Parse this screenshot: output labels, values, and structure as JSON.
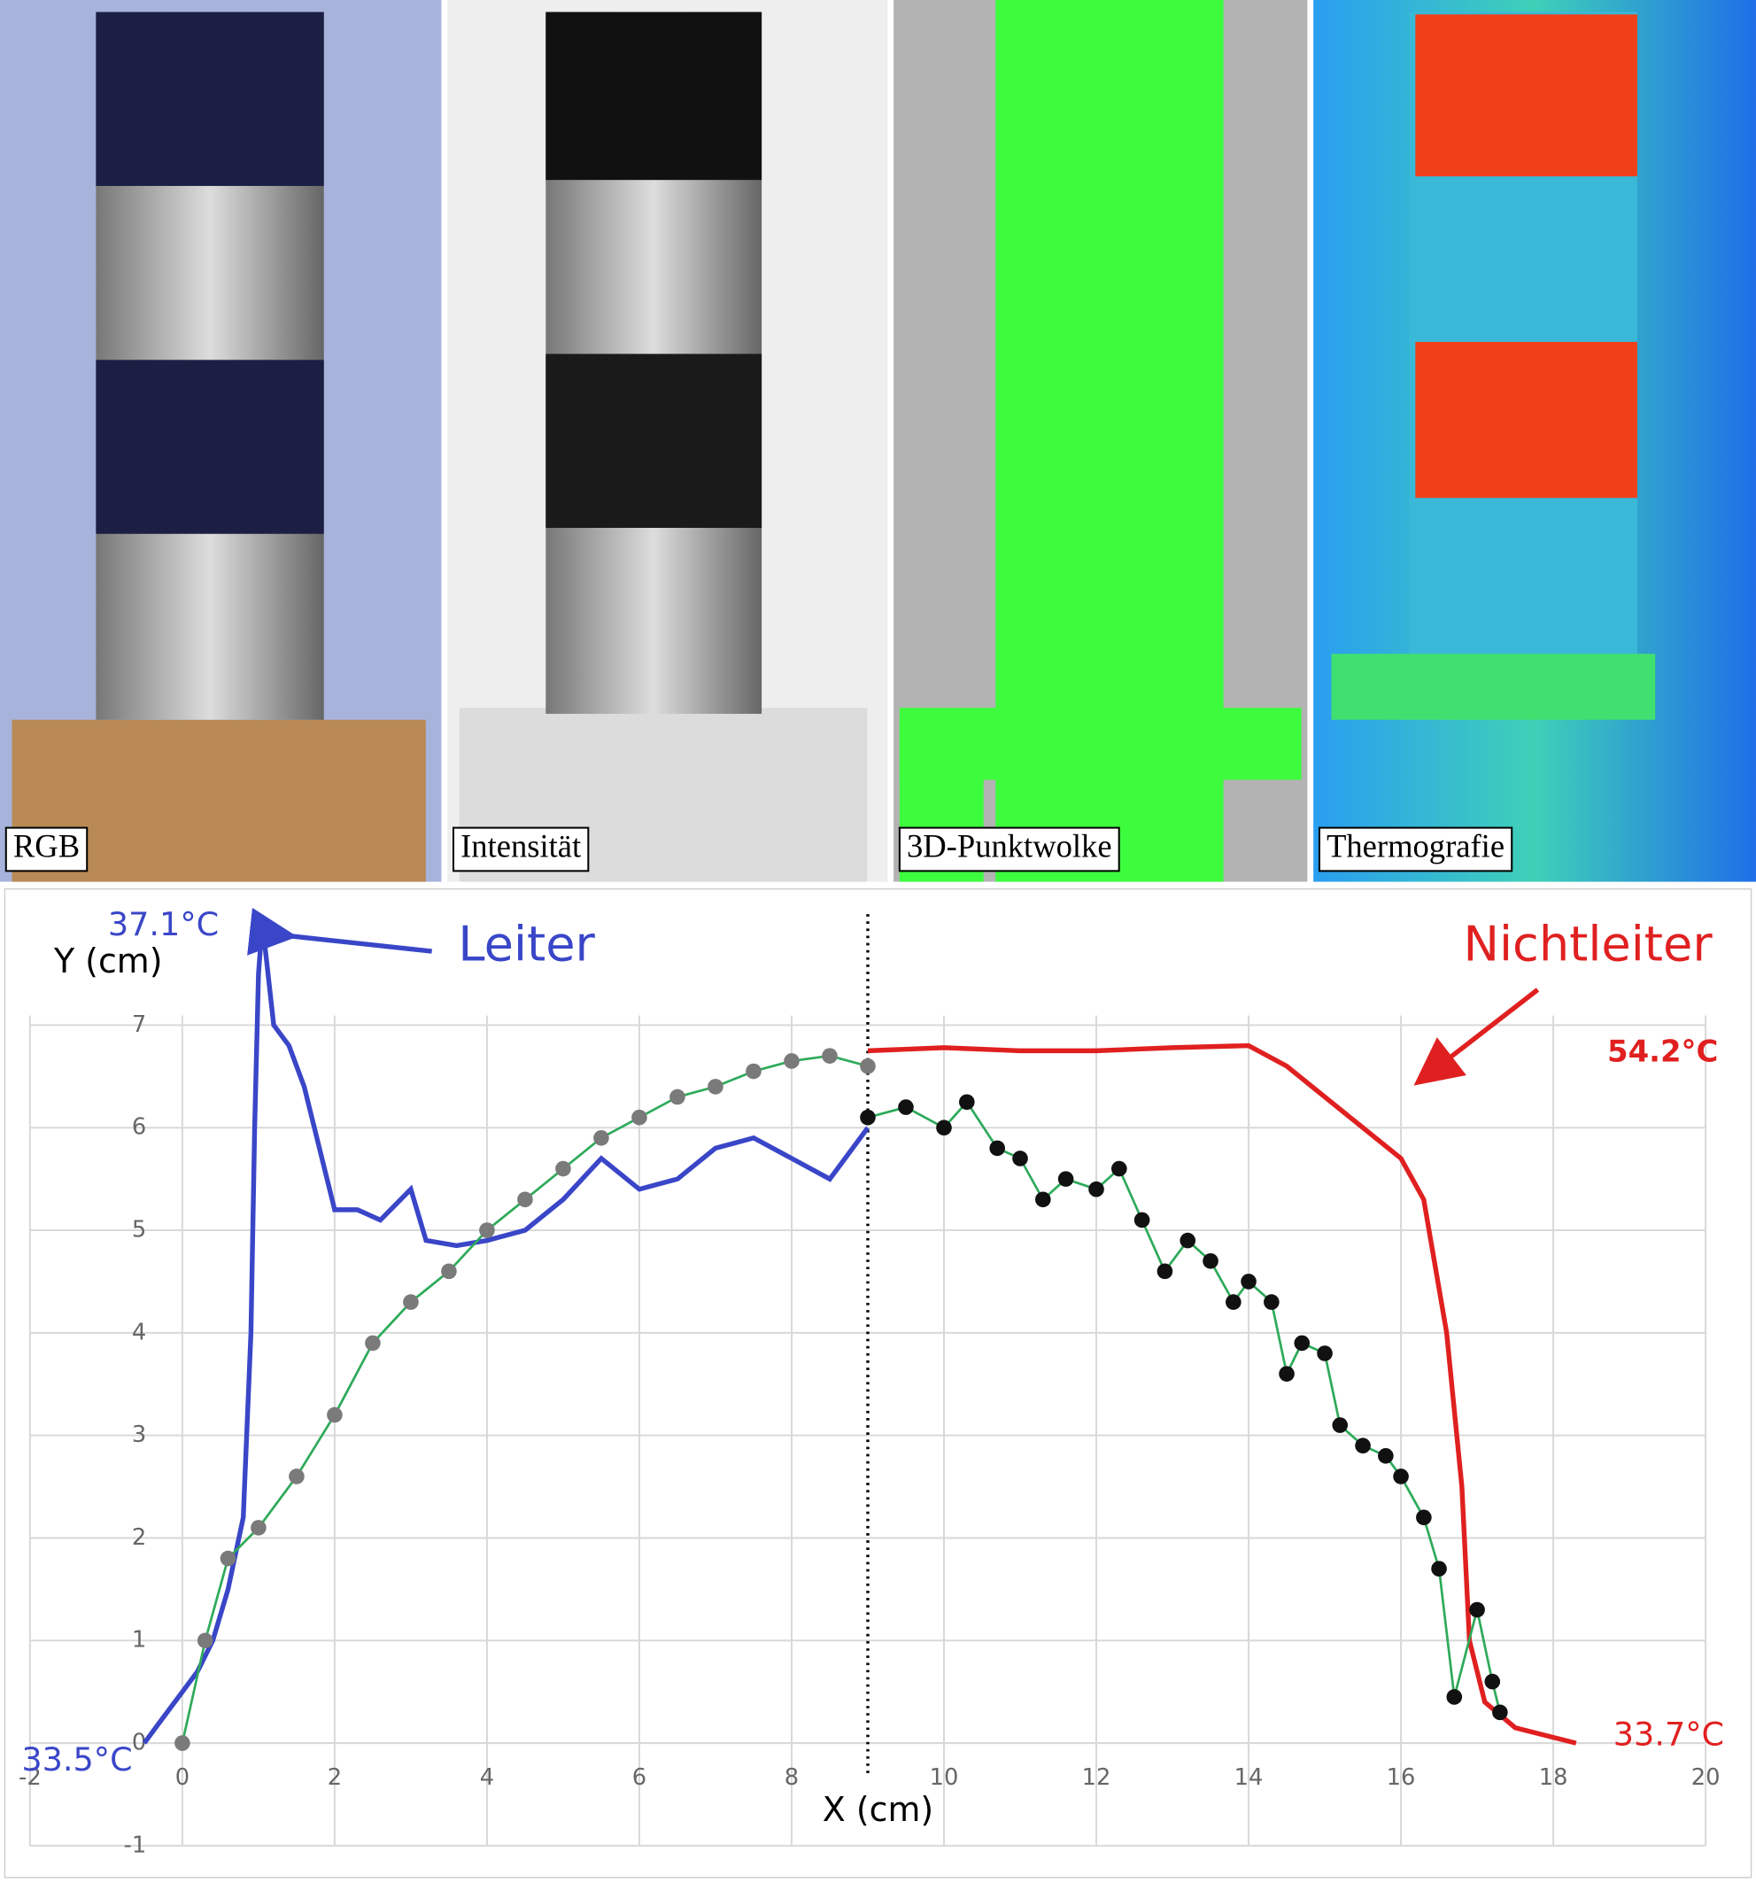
{
  "panels": [
    {
      "label": "RGB"
    },
    {
      "label": "Intensität"
    },
    {
      "label": "3D-Punktwolke"
    },
    {
      "label": "Thermografie"
    }
  ],
  "chart_data": {
    "type": "line",
    "xlabel": "X (cm)",
    "ylabel": "Y (cm)",
    "xlim": [
      -2,
      20
    ],
    "ylim": [
      -1,
      8.2
    ],
    "xticks": [
      -2,
      0,
      2,
      4,
      6,
      8,
      10,
      12,
      14,
      16,
      18,
      20
    ],
    "yticks": [
      -1,
      0,
      1,
      2,
      3,
      4,
      5,
      6,
      7
    ],
    "grid": true,
    "vline": 9,
    "annotations": [
      "37.1°C",
      "Leiter",
      "Nichtleiter",
      "54.2°C",
      "33.5°C",
      "33.7°C"
    ],
    "series": [
      {
        "name": "Leiter",
        "type": "line",
        "color": "#3a46c8",
        "x": [
          -0.5,
          -0.3,
          0,
          0.2,
          0.4,
          0.6,
          0.8,
          0.9,
          0.95,
          1.0,
          1.05,
          1.2,
          1.4,
          1.6,
          1.8,
          2.0,
          2.3,
          2.6,
          3.0,
          3.2,
          3.6,
          4.0,
          4.5,
          5.0,
          5.5,
          6.0,
          6.5,
          7.0,
          7.5,
          8.0,
          8.5,
          9.0
        ],
        "values": [
          0.0,
          0.2,
          0.5,
          0.7,
          1.0,
          1.5,
          2.2,
          4.0,
          6.0,
          7.5,
          8.0,
          7.0,
          6.8,
          6.4,
          5.8,
          5.2,
          5.2,
          5.1,
          5.4,
          4.9,
          4.85,
          4.9,
          5.0,
          5.3,
          5.7,
          5.4,
          5.5,
          5.8,
          5.9,
          5.7,
          5.5,
          6.0
        ]
      },
      {
        "name": "Nichtleiter",
        "type": "line",
        "color": "#e02020",
        "x": [
          9,
          10,
          11,
          12,
          13,
          14,
          14.5,
          15,
          15.5,
          16,
          16.3,
          16.6,
          16.8,
          16.9,
          17.1,
          17.5,
          18.3
        ],
        "values": [
          6.75,
          6.78,
          6.75,
          6.75,
          6.78,
          6.8,
          6.6,
          6.3,
          6.0,
          5.7,
          5.3,
          4.0,
          2.5,
          1.0,
          0.4,
          0.15,
          0.0
        ]
      },
      {
        "type": "scatter",
        "color": "#7a7a7a",
        "line_color": "#2eaa5a",
        "x": [
          0,
          0.3,
          0.6,
          1,
          1.5,
          2,
          2.5,
          3,
          3.5,
          4,
          4.5,
          5,
          5.5,
          6,
          6.5,
          7,
          7.5,
          8,
          8.5,
          9
        ],
        "values": [
          0,
          1,
          1.8,
          2.1,
          2.6,
          3.2,
          3.9,
          4.3,
          4.6,
          5.0,
          5.3,
          5.6,
          5.9,
          6.1,
          6.3,
          6.4,
          6.55,
          6.65,
          6.7,
          6.6
        ]
      },
      {
        "type": "scatter",
        "color": "#111111",
        "line_color": "#2eaa5a",
        "x": [
          9,
          9.5,
          10,
          10.3,
          10.7,
          11,
          11.3,
          11.6,
          12,
          12.3,
          12.6,
          12.9,
          13.2,
          13.5,
          13.8,
          14,
          14.3,
          14.5,
          14.7,
          15,
          15.2,
          15.5,
          15.8,
          16,
          16.3,
          16.5,
          16.7,
          17,
          17.2,
          17.3
        ],
        "values": [
          6.1,
          6.2,
          6.0,
          6.25,
          5.8,
          5.7,
          5.3,
          5.5,
          5.4,
          5.6,
          5.1,
          4.6,
          4.9,
          4.7,
          4.3,
          4.5,
          4.3,
          3.6,
          3.9,
          3.8,
          3.1,
          2.9,
          2.8,
          2.6,
          2.2,
          1.7,
          0.45,
          1.3,
          0.6,
          0.3
        ]
      }
    ]
  }
}
